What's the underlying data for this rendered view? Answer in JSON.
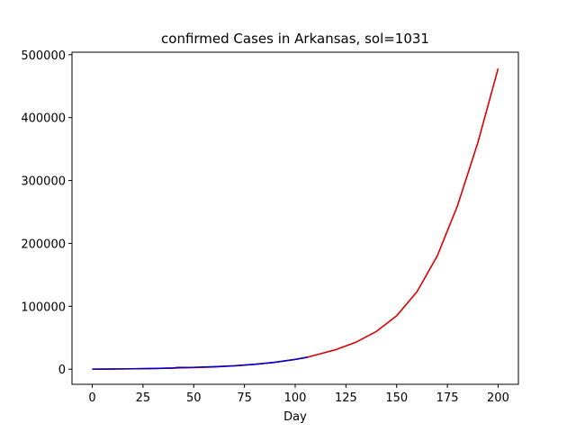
{
  "chart_data": {
    "type": "line",
    "title": "confirmed Cases in Arkansas, sol=1031",
    "xlabel": "Day",
    "ylabel": "",
    "xlim": [
      -10,
      210
    ],
    "ylim": [
      -24000,
      504000
    ],
    "xticks": [
      0,
      25,
      50,
      75,
      100,
      125,
      150,
      175,
      200
    ],
    "yticks": [
      0,
      100000,
      200000,
      300000,
      400000,
      500000
    ],
    "grid": false,
    "series": [
      {
        "color": "#dd0000",
        "x": [
          0,
          10,
          20,
          30,
          40,
          50,
          60,
          70,
          80,
          90,
          100,
          106,
          110,
          120,
          130,
          140,
          150,
          160,
          170,
          180,
          190,
          200
        ],
        "y": [
          0,
          300,
          700,
          1200,
          1800,
          2600,
          3700,
          5300,
          7700,
          11000,
          15600,
          19000,
          22500,
          31000,
          43000,
          60000,
          85000,
          123000,
          180000,
          260000,
          360000,
          478000
        ]
      },
      {
        "color": "#0000cc",
        "x": [
          0,
          10,
          20,
          30,
          40,
          42,
          50,
          60,
          70,
          80,
          90,
          100,
          106
        ],
        "y": [
          0,
          300,
          700,
          1200,
          1800,
          2800,
          3000,
          4000,
          5500,
          7800,
          11000,
          15500,
          19000
        ]
      }
    ]
  }
}
